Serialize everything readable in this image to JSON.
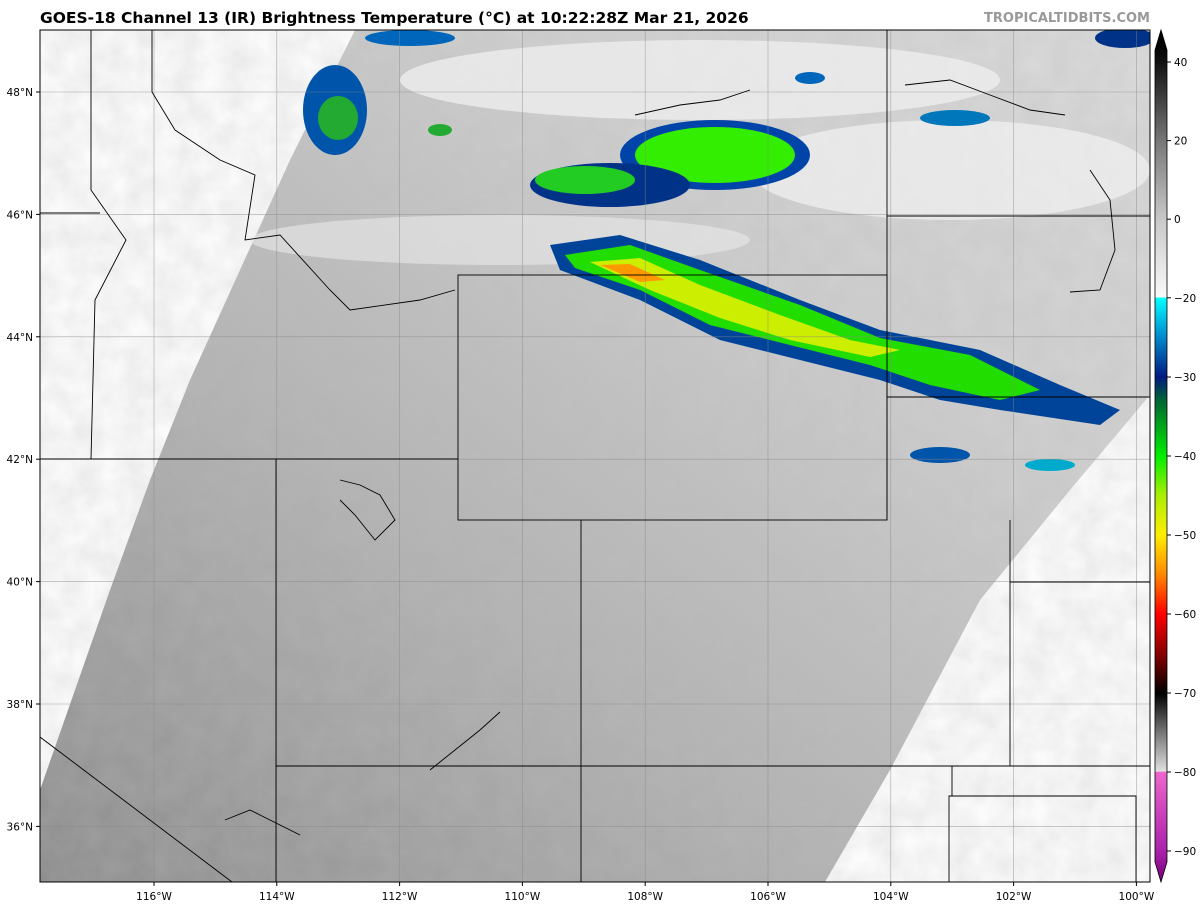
{
  "title": "GOES-18 Channel 13 (IR) Brightness Temperature (°C) at 10:22:28Z Mar 21, 2026",
  "credit": "TROPICALTIDBITS.COM",
  "map": {
    "lat_labels": [
      "48°N",
      "46°N",
      "44°N",
      "42°N",
      "40°N",
      "38°N",
      "36°N"
    ],
    "lat_values": [
      48,
      46,
      44,
      42,
      40,
      38,
      36
    ],
    "lon_labels": [
      "116°W",
      "114°W",
      "112°W",
      "110°W",
      "108°W",
      "106°W",
      "104°W",
      "102°W",
      "100°W"
    ],
    "lon_values": [
      -116,
      -114,
      -112,
      -110,
      -108,
      -106,
      -104,
      -102,
      -100
    ]
  },
  "colorbar": {
    "tick_labels": [
      "40",
      "20",
      "0",
      "−20",
      "−30",
      "−40",
      "−50",
      "−60",
      "−70",
      "−80",
      "−90"
    ],
    "tick_values": [
      40,
      20,
      0,
      -20,
      -30,
      -40,
      -50,
      -60,
      -70,
      -80,
      -90
    ],
    "colors": {
      "warm": "#000000",
      "cold_start": "#00ffff",
      "green": "#00e000",
      "yellow": "#ffff00",
      "red": "#ff0000",
      "pink": "#ee66cc",
      "purple": "#770077"
    }
  }
}
